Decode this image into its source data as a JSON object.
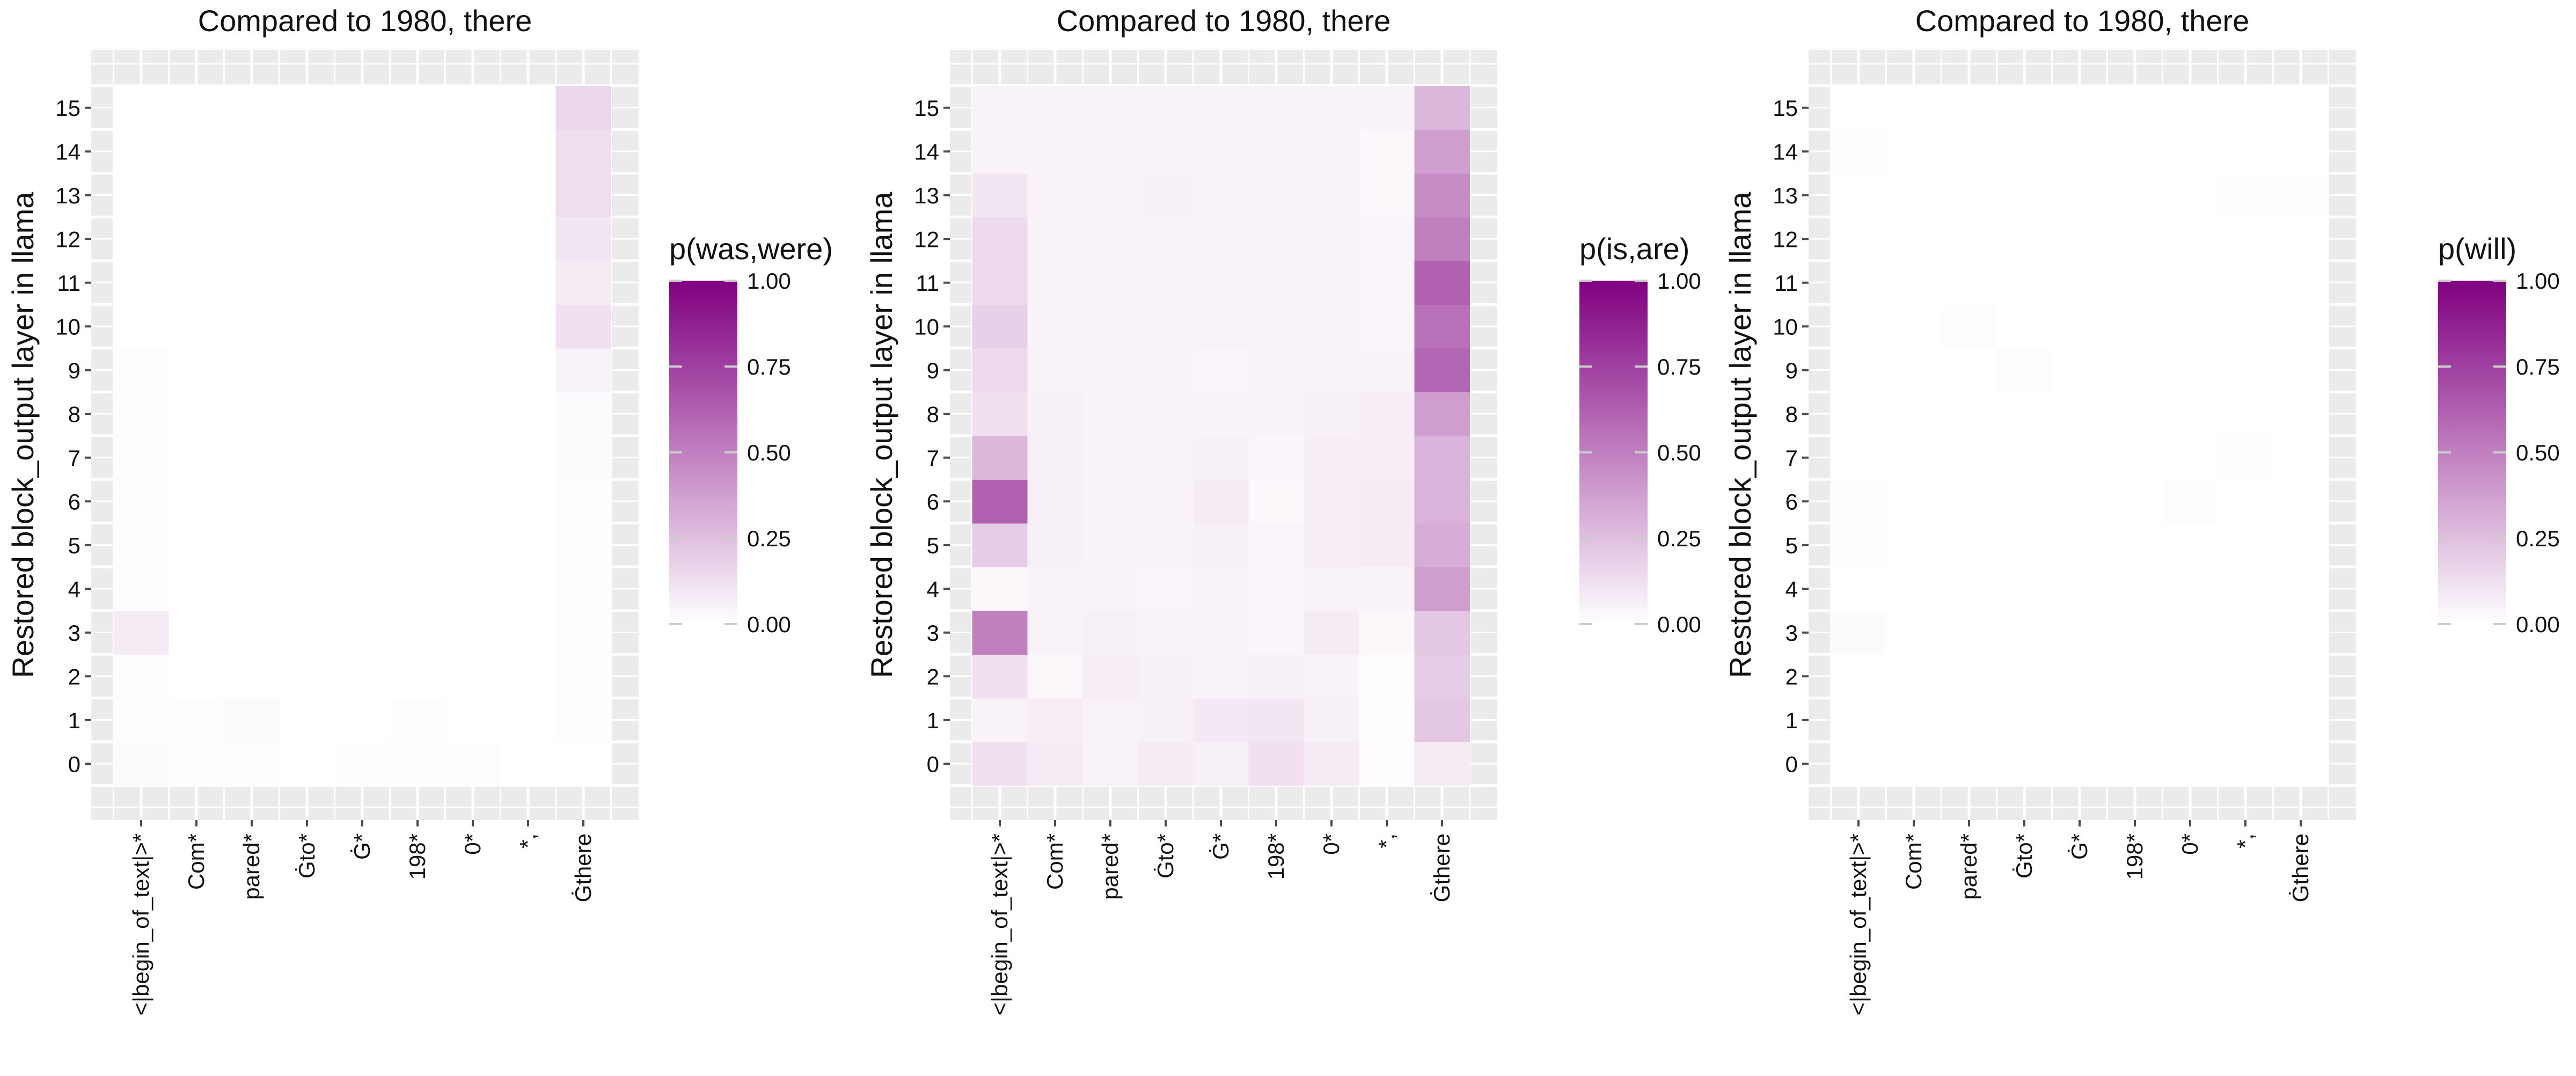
{
  "colors": {
    "low": "#ffffff",
    "high": "#800080",
    "panel_bg": "#ebebeb",
    "grid": "#ffffff",
    "text": "#111111",
    "tick": "#4d4d4d"
  },
  "chart_data": [
    {
      "type": "heatmap",
      "title": "Compared to 1980, there",
      "ylabel": "Restored block_output layer in llama",
      "xlabel": "",
      "legend_title": "p(was,were)",
      "legend_ticks": [
        "0.00",
        "0.25",
        "0.50",
        "0.75",
        "1.00"
      ],
      "value_range": [
        0,
        1
      ],
      "x": [
        "<|begin_of_text|>*",
        "Com*",
        "pared*",
        "Ġto*",
        "Ġ*",
        "198*",
        "0*",
        "*,",
        "Ġthere"
      ],
      "y": [
        "0",
        "1",
        "2",
        "3",
        "4",
        "5",
        "6",
        "7",
        "8",
        "9",
        "10",
        "11",
        "12",
        "13",
        "14",
        "15"
      ],
      "z": [
        [
          0.02,
          0.01,
          0.01,
          0.0,
          0.01,
          0.01,
          0.01,
          0.0,
          0.0
        ],
        [
          0.01,
          0.01,
          0.02,
          0.0,
          0.0,
          0.01,
          0.0,
          0.0,
          0.01
        ],
        [
          0.01,
          0.0,
          0.0,
          0.0,
          0.0,
          0.0,
          0.0,
          0.0,
          0.01
        ],
        [
          0.08,
          0.0,
          0.0,
          0.0,
          0.0,
          0.0,
          0.0,
          0.0,
          0.01
        ],
        [
          0.01,
          0.0,
          0.0,
          0.0,
          0.0,
          0.0,
          0.0,
          0.0,
          0.01
        ],
        [
          0.01,
          0.0,
          0.0,
          0.0,
          0.0,
          0.0,
          0.0,
          0.0,
          0.01
        ],
        [
          0.01,
          0.0,
          0.0,
          0.0,
          0.0,
          0.0,
          0.0,
          0.0,
          0.01
        ],
        [
          0.01,
          0.0,
          0.0,
          0.0,
          0.0,
          0.0,
          0.0,
          0.0,
          0.02
        ],
        [
          0.01,
          0.0,
          0.0,
          0.0,
          0.0,
          0.0,
          0.0,
          0.0,
          0.02
        ],
        [
          0.01,
          0.0,
          0.0,
          0.0,
          0.0,
          0.0,
          0.0,
          0.0,
          0.05
        ],
        [
          0.0,
          0.0,
          0.0,
          0.0,
          0.0,
          0.0,
          0.0,
          0.0,
          0.12
        ],
        [
          0.0,
          0.0,
          0.0,
          0.0,
          0.0,
          0.0,
          0.0,
          0.0,
          0.08
        ],
        [
          0.0,
          0.0,
          0.0,
          0.0,
          0.0,
          0.0,
          0.0,
          0.0,
          0.1
        ],
        [
          0.0,
          0.0,
          0.0,
          0.0,
          0.0,
          0.0,
          0.0,
          0.0,
          0.13
        ],
        [
          0.0,
          0.0,
          0.0,
          0.0,
          0.0,
          0.0,
          0.0,
          0.0,
          0.13
        ],
        [
          0.0,
          0.0,
          0.0,
          0.0,
          0.0,
          0.0,
          0.0,
          0.0,
          0.16
        ]
      ]
    },
    {
      "type": "heatmap",
      "title": "Compared to 1980, there",
      "ylabel": "Restored block_output layer in llama",
      "xlabel": "",
      "legend_title": "p(is,are)",
      "legend_ticks": [
        "0.00",
        "0.25",
        "0.50",
        "0.75",
        "1.00"
      ],
      "value_range": [
        0,
        1
      ],
      "x": [
        "<|begin_of_text|>*",
        "Com*",
        "pared*",
        "Ġto*",
        "Ġ*",
        "198*",
        "0*",
        "*,",
        "Ġthere"
      ],
      "y": [
        "0",
        "1",
        "2",
        "3",
        "4",
        "5",
        "6",
        "7",
        "8",
        "9",
        "10",
        "11",
        "12",
        "13",
        "14",
        "15"
      ],
      "z": [
        [
          0.12,
          0.08,
          0.05,
          0.08,
          0.06,
          0.12,
          0.08,
          0.01,
          0.08
        ],
        [
          0.05,
          0.07,
          0.05,
          0.06,
          0.09,
          0.1,
          0.06,
          0.01,
          0.22
        ],
        [
          0.12,
          0.03,
          0.07,
          0.06,
          0.05,
          0.06,
          0.05,
          0.01,
          0.2
        ],
        [
          0.5,
          0.05,
          0.06,
          0.05,
          0.05,
          0.04,
          0.08,
          0.03,
          0.22
        ],
        [
          0.03,
          0.05,
          0.05,
          0.04,
          0.05,
          0.04,
          0.05,
          0.05,
          0.38
        ],
        [
          0.2,
          0.06,
          0.05,
          0.05,
          0.06,
          0.04,
          0.07,
          0.08,
          0.32
        ],
        [
          0.62,
          0.06,
          0.05,
          0.05,
          0.08,
          0.03,
          0.07,
          0.08,
          0.3
        ],
        [
          0.28,
          0.06,
          0.05,
          0.05,
          0.06,
          0.04,
          0.07,
          0.07,
          0.3
        ],
        [
          0.12,
          0.06,
          0.05,
          0.05,
          0.05,
          0.05,
          0.06,
          0.07,
          0.38
        ],
        [
          0.14,
          0.05,
          0.05,
          0.05,
          0.04,
          0.05,
          0.05,
          0.05,
          0.6
        ],
        [
          0.18,
          0.05,
          0.05,
          0.05,
          0.05,
          0.05,
          0.05,
          0.04,
          0.56
        ],
        [
          0.14,
          0.05,
          0.05,
          0.05,
          0.05,
          0.05,
          0.05,
          0.04,
          0.62
        ],
        [
          0.14,
          0.05,
          0.05,
          0.05,
          0.05,
          0.05,
          0.05,
          0.04,
          0.5
        ],
        [
          0.1,
          0.05,
          0.05,
          0.06,
          0.05,
          0.05,
          0.05,
          0.03,
          0.45
        ],
        [
          0.05,
          0.05,
          0.05,
          0.05,
          0.05,
          0.05,
          0.05,
          0.03,
          0.38
        ],
        [
          0.05,
          0.05,
          0.05,
          0.05,
          0.05,
          0.05,
          0.05,
          0.05,
          0.28
        ]
      ]
    },
    {
      "type": "heatmap",
      "title": "Compared to 1980, there",
      "ylabel": "Restored block_output layer in llama",
      "xlabel": "",
      "legend_title": "p(will)",
      "legend_ticks": [
        "0.00",
        "0.25",
        "0.50",
        "0.75",
        "1.00"
      ],
      "value_range": [
        0,
        1
      ],
      "x": [
        "<|begin_of_text|>*",
        "Com*",
        "pared*",
        "Ġto*",
        "Ġ*",
        "198*",
        "0*",
        "*,",
        "Ġthere"
      ],
      "y": [
        "0",
        "1",
        "2",
        "3",
        "4",
        "5",
        "6",
        "7",
        "8",
        "9",
        "10",
        "11",
        "12",
        "13",
        "14",
        "15"
      ],
      "z": [
        [
          0.0,
          0.0,
          0.0,
          0.0,
          0.0,
          0.0,
          0.0,
          0.0,
          0.0
        ],
        [
          0.0,
          0.0,
          0.0,
          0.0,
          0.0,
          0.0,
          0.0,
          0.0,
          0.0
        ],
        [
          0.0,
          0.0,
          0.0,
          0.0,
          0.0,
          0.0,
          0.0,
          0.0,
          0.0
        ],
        [
          0.02,
          0.0,
          0.0,
          0.0,
          0.0,
          0.0,
          0.0,
          0.0,
          0.0
        ],
        [
          0.0,
          0.0,
          0.0,
          0.0,
          0.0,
          0.0,
          0.0,
          0.0,
          0.0
        ],
        [
          0.01,
          0.0,
          0.0,
          0.0,
          0.0,
          0.0,
          0.0,
          0.0,
          0.0
        ],
        [
          0.01,
          0.0,
          0.0,
          0.0,
          0.0,
          0.0,
          0.01,
          0.0,
          0.0
        ],
        [
          0.0,
          0.0,
          0.0,
          0.0,
          0.0,
          0.0,
          0.0,
          0.01,
          0.0
        ],
        [
          0.0,
          0.0,
          0.0,
          0.0,
          0.0,
          0.0,
          0.0,
          0.0,
          0.0
        ],
        [
          0.0,
          0.0,
          0.0,
          0.01,
          0.0,
          0.0,
          0.0,
          0.0,
          0.0
        ],
        [
          0.0,
          0.0,
          0.01,
          0.0,
          0.0,
          0.0,
          0.0,
          0.0,
          0.0
        ],
        [
          0.0,
          0.0,
          0.0,
          0.0,
          0.0,
          0.0,
          0.0,
          0.0,
          0.0
        ],
        [
          0.0,
          0.0,
          0.0,
          0.0,
          0.0,
          0.0,
          0.0,
          0.0,
          0.0
        ],
        [
          0.0,
          0.0,
          0.0,
          0.0,
          0.0,
          0.0,
          0.0,
          0.01,
          0.01
        ],
        [
          0.01,
          0.0,
          0.0,
          0.0,
          0.0,
          0.0,
          0.0,
          0.0,
          0.0
        ],
        [
          0.0,
          0.0,
          0.0,
          0.0,
          0.0,
          0.0,
          0.0,
          0.0,
          0.0
        ]
      ]
    }
  ]
}
